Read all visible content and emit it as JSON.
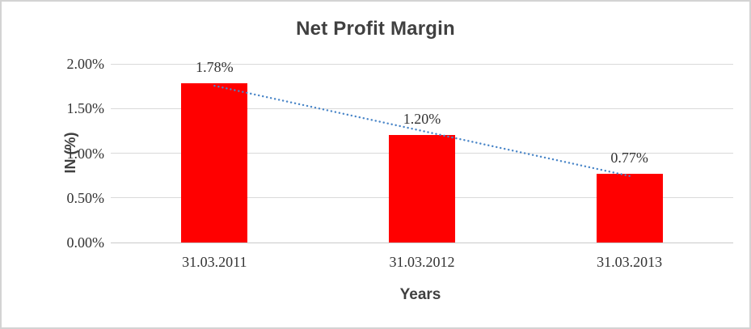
{
  "chart_data": {
    "type": "bar",
    "title": "Net Profit Margin",
    "xlabel": "Years",
    "ylabel": "IN (%)",
    "categories": [
      "31.03.2011",
      "31.03.2012",
      "31.03.2013"
    ],
    "series": [
      {
        "name": "Net Profit Margin",
        "values": [
          1.78,
          1.2,
          0.77
        ],
        "labels": [
          "1.78%",
          "1.20%",
          "0.77%"
        ],
        "color": "#ff0000"
      }
    ],
    "y_ticks": [
      "2.00%",
      "1.50%",
      "1.00%",
      "0.50%",
      "0.00%"
    ],
    "ylim": [
      0,
      2
    ],
    "y_tick_step": 0.5,
    "grid": true,
    "legend": "none",
    "trendline": {
      "type": "linear",
      "style": "dotted",
      "color": "#4a86c8"
    }
  },
  "colors": {
    "bar_fill": "#ff0000",
    "trendline": "#4a86c8",
    "gridline": "#d9d9d9",
    "text": "#333333",
    "heading_text": "#404040",
    "frame_border": "#d3d3d3"
  }
}
